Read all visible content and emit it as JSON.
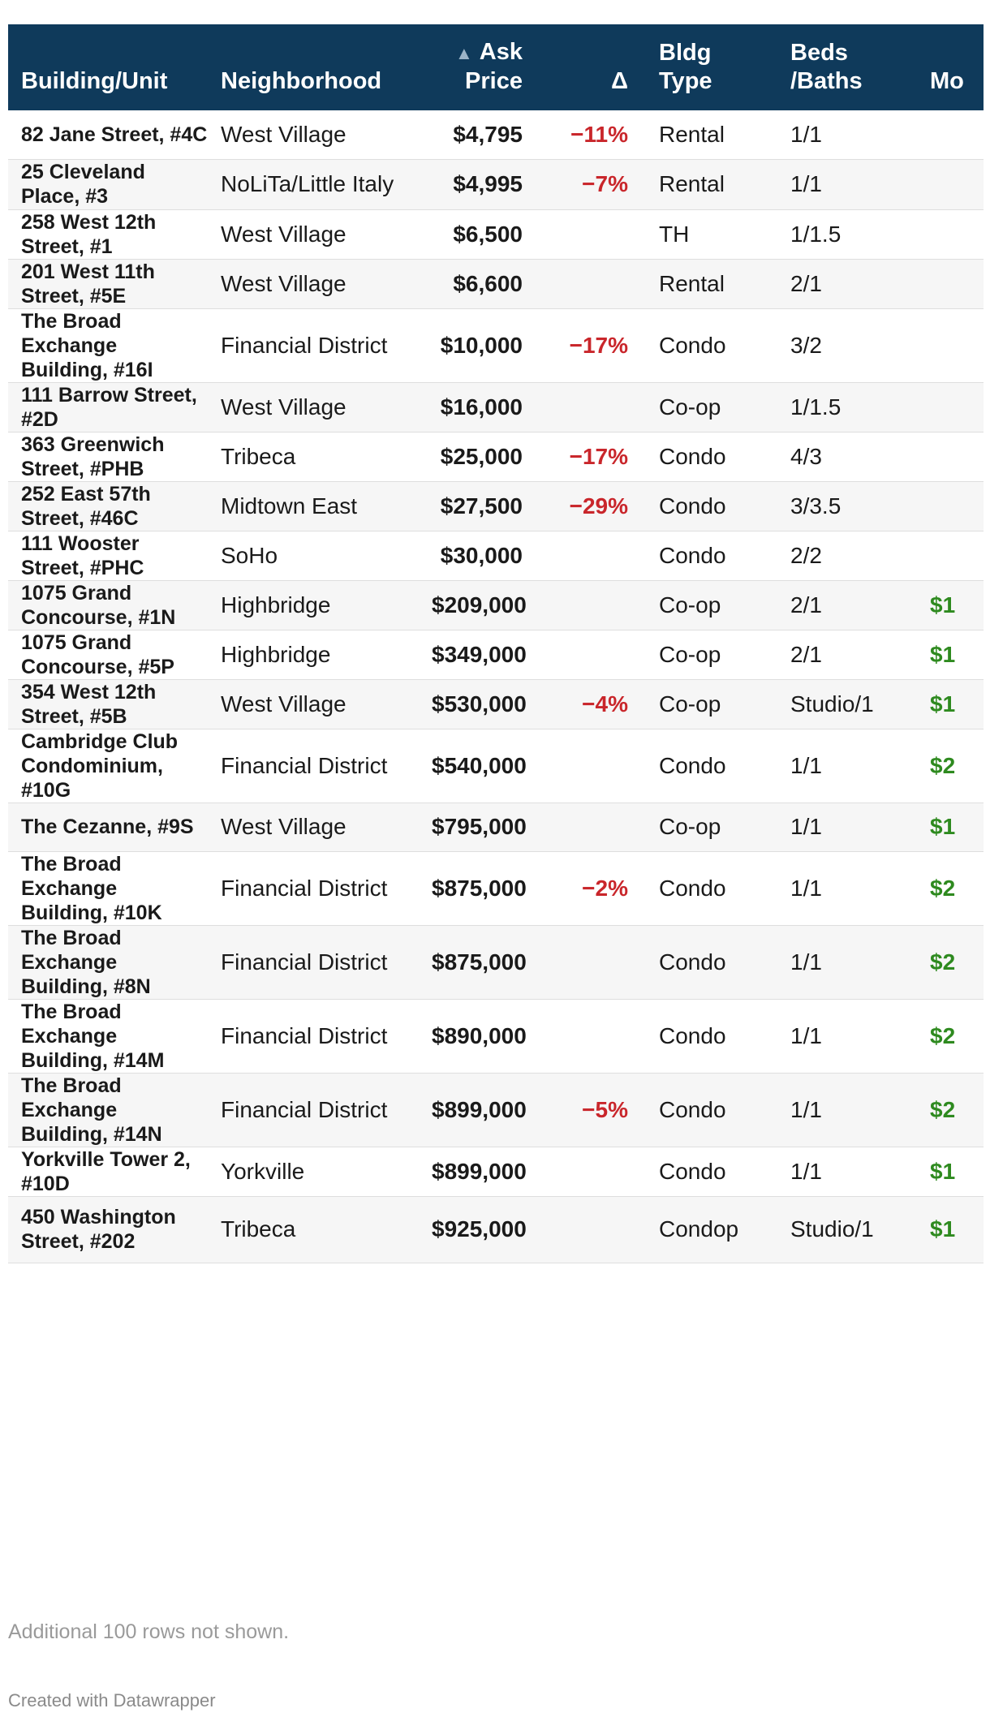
{
  "table": {
    "headers": {
      "building": "Building/Unit",
      "neighborhood": "Neighborhood",
      "sort_indicator": "▲",
      "price_line1": "Ask",
      "price_line2": "Price",
      "delta": "Δ",
      "type_line1": "Bldg",
      "type_line2": "Type",
      "beds_line1": "Beds",
      "beds_line2": "/Baths",
      "more": "Mo"
    },
    "rows": [
      {
        "building": "82 Jane Street, #4C",
        "neighborhood": "West Village",
        "price": "$4,795",
        "delta": "−11%",
        "type": "Rental",
        "beds": "1/1",
        "more": ""
      },
      {
        "building": "25 Cleveland Place, #3",
        "neighborhood": "NoLiTa/Little Italy",
        "price": "$4,995",
        "delta": "−7%",
        "type": "Rental",
        "beds": "1/1",
        "more": ""
      },
      {
        "building": "258 West 12th Street, #1",
        "neighborhood": "West Village",
        "price": "$6,500",
        "delta": "",
        "type": "TH",
        "beds": "1/1.5",
        "more": ""
      },
      {
        "building": "201 West 11th Street, #5E",
        "neighborhood": "West Village",
        "price": "$6,600",
        "delta": "",
        "type": "Rental",
        "beds": "2/1",
        "more": ""
      },
      {
        "building": "The Broad Exchange Building, #16I",
        "neighborhood": "Financial District",
        "price": "$10,000",
        "delta": "−17%",
        "type": "Condo",
        "beds": "3/2",
        "more": ""
      },
      {
        "building": "111 Barrow Street, #2D",
        "neighborhood": "West Village",
        "price": "$16,000",
        "delta": "",
        "type": "Co-op",
        "beds": "1/1.5",
        "more": ""
      },
      {
        "building": "363 Greenwich Street, #PHB",
        "neighborhood": "Tribeca",
        "price": "$25,000",
        "delta": "−17%",
        "type": "Condo",
        "beds": "4/3",
        "more": ""
      },
      {
        "building": "252 East 57th Street, #46C",
        "neighborhood": "Midtown East",
        "price": "$27,500",
        "delta": "−29%",
        "type": "Condo",
        "beds": "3/3.5",
        "more": ""
      },
      {
        "building": "111 Wooster Street, #PHC",
        "neighborhood": "SoHo",
        "price": "$30,000",
        "delta": "",
        "type": "Condo",
        "beds": "2/2",
        "more": ""
      },
      {
        "building": "1075 Grand Concourse, #1N",
        "neighborhood": "Highbridge",
        "price": "$209,000",
        "delta": "",
        "type": "Co-op",
        "beds": "2/1",
        "more": "$1"
      },
      {
        "building": "1075 Grand Concourse, #5P",
        "neighborhood": "Highbridge",
        "price": "$349,000",
        "delta": "",
        "type": "Co-op",
        "beds": "2/1",
        "more": "$1"
      },
      {
        "building": "354 West 12th Street, #5B",
        "neighborhood": "West Village",
        "price": "$530,000",
        "delta": "−4%",
        "type": "Co-op",
        "beds": "Studio/1",
        "more": "$1"
      },
      {
        "building": "Cambridge Club Condominium, #10G",
        "neighborhood": "Financial District",
        "price": "$540,000",
        "delta": "",
        "type": "Condo",
        "beds": "1/1",
        "more": "$2"
      },
      {
        "building": "The Cezanne, #9S",
        "neighborhood": "West Village",
        "price": "$795,000",
        "delta": "",
        "type": "Co-op",
        "beds": "1/1",
        "more": "$1"
      },
      {
        "building": "The Broad Exchange Building, #10K",
        "neighborhood": "Financial District",
        "price": "$875,000",
        "delta": "−2%",
        "type": "Condo",
        "beds": "1/1",
        "more": "$2"
      },
      {
        "building": "The Broad Exchange Building, #8N",
        "neighborhood": "Financial District",
        "price": "$875,000",
        "delta": "",
        "type": "Condo",
        "beds": "1/1",
        "more": "$2"
      },
      {
        "building": "The Broad Exchange Building, #14M",
        "neighborhood": "Financial District",
        "price": "$890,000",
        "delta": "",
        "type": "Condo",
        "beds": "1/1",
        "more": "$2"
      },
      {
        "building": "The Broad Exchange Building, #14N",
        "neighborhood": "Financial District",
        "price": "$899,000",
        "delta": "−5%",
        "type": "Condo",
        "beds": "1/1",
        "more": "$2"
      },
      {
        "building": "Yorkville Tower 2, #10D",
        "neighborhood": "Yorkville",
        "price": "$899,000",
        "delta": "",
        "type": "Condo",
        "beds": "1/1",
        "more": "$1"
      },
      {
        "building": "450 Washington Street, #202",
        "neighborhood": "Tribeca",
        "price": "$925,000",
        "delta": "",
        "type": "Condop",
        "beds": "Studio/1",
        "more": "$1"
      }
    ]
  },
  "footer": {
    "note": "Additional 100 rows not shown.",
    "credit": "Created with Datawrapper"
  }
}
